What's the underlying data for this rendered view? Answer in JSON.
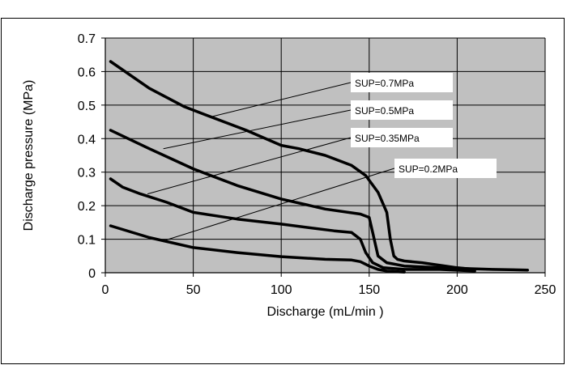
{
  "chart_data": {
    "type": "line",
    "title": "",
    "xlabel": "Discharge (mL/min )",
    "ylabel": "Discharge pressure (MPa)",
    "xlim": [
      0,
      250
    ],
    "ylim": [
      0,
      0.7
    ],
    "x_ticks": [
      "0",
      "50",
      "100",
      "150",
      "200",
      "250"
    ],
    "y_ticks": [
      "0",
      "0.1",
      "0.2",
      "0.3",
      "0.4",
      "0.5",
      "0.6",
      "0.7"
    ],
    "x_tick_values": [
      0,
      50,
      100,
      150,
      200,
      250
    ],
    "y_tick_values": [
      0,
      0.1,
      0.2,
      0.3,
      0.4,
      0.5,
      0.6,
      0.7
    ],
    "grid": true,
    "plot_background": "#c0c0c0",
    "line_color": "#000000",
    "series": [
      {
        "name": "SUP=0.7MPa",
        "x": [
          3,
          25,
          45,
          60,
          80,
          100,
          110,
          125,
          140,
          148,
          155,
          160,
          162,
          164,
          166,
          170,
          180,
          200,
          210
        ],
        "y": [
          0.63,
          0.55,
          0.495,
          0.465,
          0.425,
          0.38,
          0.37,
          0.35,
          0.32,
          0.29,
          0.24,
          0.18,
          0.1,
          0.05,
          0.04,
          0.035,
          0.03,
          0.015,
          0.01
        ]
      },
      {
        "name": "SUP=0.5MPa",
        "x": [
          3,
          25,
          50,
          75,
          100,
          125,
          145,
          150,
          152,
          155,
          160,
          170,
          190,
          220,
          240
        ],
        "y": [
          0.425,
          0.37,
          0.31,
          0.26,
          0.22,
          0.19,
          0.175,
          0.165,
          0.12,
          0.05,
          0.03,
          0.02,
          0.015,
          0.01,
          0.008
        ]
      },
      {
        "name": "SUP=0.35MPa",
        "x": [
          3,
          10,
          20,
          35,
          50,
          75,
          100,
          130,
          140,
          145,
          148,
          152,
          158,
          170,
          190,
          210
        ],
        "y": [
          0.28,
          0.255,
          0.235,
          0.21,
          0.18,
          0.16,
          0.145,
          0.125,
          0.12,
          0.1,
          0.06,
          0.03,
          0.015,
          0.01,
          0.01,
          0.005
        ]
      },
      {
        "name": "SUP=0.2MPa",
        "x": [
          3,
          25,
          50,
          75,
          100,
          125,
          140,
          145,
          150,
          155,
          160,
          170
        ],
        "y": [
          0.14,
          0.105,
          0.075,
          0.06,
          0.048,
          0.04,
          0.038,
          0.033,
          0.02,
          0.01,
          0.005,
          0.002
        ]
      }
    ],
    "annotations": [
      {
        "text": "SUP=0.7MPa",
        "target_x": 60,
        "target_y": 0.465
      },
      {
        "text": "SUP=0.5MPa",
        "target_x": 33,
        "target_y": 0.37
      },
      {
        "text": "SUP=0.35MPa",
        "target_x": 24,
        "target_y": 0.235
      },
      {
        "text": "SUP=0.2MPa",
        "target_x": 33,
        "target_y": 0.095
      }
    ]
  }
}
